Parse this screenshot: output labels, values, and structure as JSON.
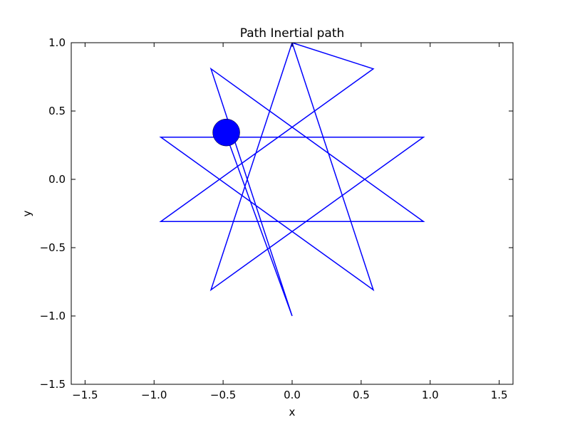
{
  "chart_data": {
    "type": "line",
    "title": "Path Inertial path",
    "xlabel": "x",
    "ylabel": "y",
    "xlim": [
      -1.6,
      1.6
    ],
    "ylim": [
      -1.5,
      1.0
    ],
    "xticks": [
      {
        "value": -1.5,
        "label": "−1.5"
      },
      {
        "value": -1.0,
        "label": "−1.0"
      },
      {
        "value": -0.5,
        "label": "−0.5"
      },
      {
        "value": 0.0,
        "label": "0.0"
      },
      {
        "value": 0.5,
        "label": "0.5"
      },
      {
        "value": 1.0,
        "label": "1.0"
      },
      {
        "value": 1.5,
        "label": "1.5"
      }
    ],
    "yticks": [
      {
        "value": -1.5,
        "label": "−1.5"
      },
      {
        "value": -1.0,
        "label": "−1.0"
      },
      {
        "value": -0.5,
        "label": "−0.5"
      },
      {
        "value": 0.0,
        "label": "0.0"
      },
      {
        "value": 0.5,
        "label": "0.5"
      },
      {
        "value": 1.0,
        "label": "1.0"
      }
    ],
    "grid": false,
    "series": [
      {
        "color": "#0000ff",
        "x": [
          0.0,
          0.588,
          -0.951,
          0.951,
          -0.588,
          0.0,
          0.588,
          -0.951,
          0.951,
          -0.588,
          0.0,
          -0.485
        ],
        "y": [
          1.0,
          -0.809,
          0.309,
          0.309,
          -0.809,
          1.0,
          0.809,
          -0.309,
          -0.309,
          0.809,
          -1.0,
          0.345
        ]
      }
    ],
    "marker": {
      "x": -0.477,
      "y": 0.343,
      "color": "#0000ff",
      "shape": "circle"
    }
  }
}
